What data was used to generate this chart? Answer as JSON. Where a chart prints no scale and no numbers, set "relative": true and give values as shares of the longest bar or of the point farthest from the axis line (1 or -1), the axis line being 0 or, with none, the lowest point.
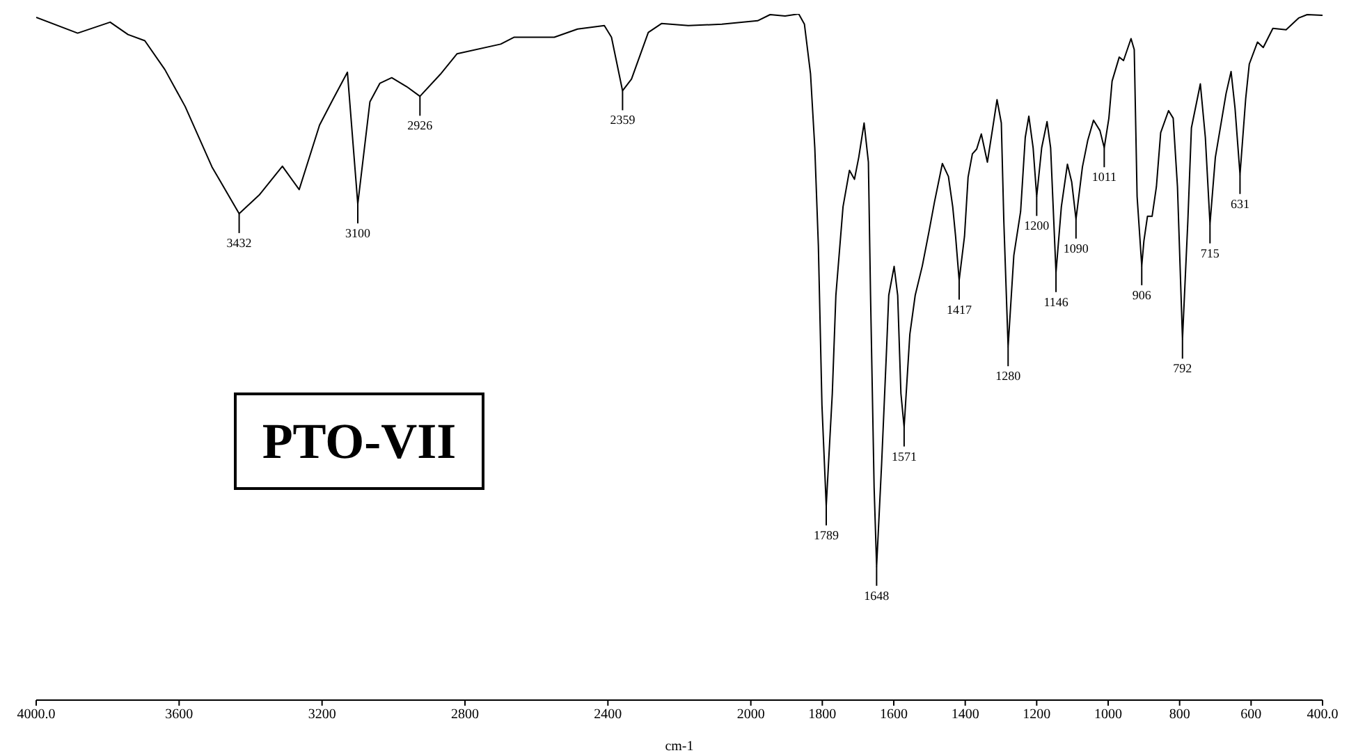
{
  "chart_data": {
    "type": "line",
    "relative": true,
    "xlabel": "cm-1",
    "xlim": [
      4000,
      400
    ],
    "xticks": [
      {
        "value": 4000,
        "label": "4000.0"
      },
      3600,
      3200,
      2800,
      2400,
      2000,
      1800,
      1600,
      1400,
      1200,
      1000,
      800,
      600,
      {
        "value": 400,
        "label": "400.0"
      }
    ],
    "x": [
      4000,
      3884,
      3793,
      3743,
      3696,
      3640,
      3583,
      3508,
      3432,
      3376,
      3311,
      3264,
      3207,
      3170,
      3129,
      3100,
      3066,
      3038,
      3005,
      2963,
      2926,
      2869,
      2822,
      2700,
      2663,
      2550,
      2485,
      2410,
      2390,
      2359,
      2334,
      2287,
      2250,
      2175,
      2081,
      1981,
      1946,
      1904,
      1866,
      1850,
      1833,
      1821,
      1811,
      1801,
      1789,
      1772,
      1762,
      1742,
      1724,
      1710,
      1698,
      1683,
      1671,
      1665,
      1655,
      1648,
      1634,
      1620,
      1614,
      1599,
      1589,
      1580,
      1571,
      1555,
      1540,
      1520,
      1501,
      1486,
      1464,
      1447,
      1435,
      1427,
      1417,
      1402,
      1392,
      1380,
      1368,
      1355,
      1338,
      1323,
      1311,
      1299,
      1292,
      1280,
      1264,
      1245,
      1232,
      1222,
      1210,
      1200,
      1186,
      1171,
      1161,
      1146,
      1131,
      1114,
      1102,
      1090,
      1072,
      1057,
      1041,
      1023,
      1011,
      998,
      989,
      969,
      957,
      936,
      927,
      919,
      906,
      900,
      890,
      877,
      865,
      853,
      831,
      818,
      806,
      792,
      777,
      767,
      742,
      728,
      715,
      700,
      670,
      656,
      645,
      631,
      615,
      605,
      582,
      566,
      539,
      502,
      467,
      443,
      400
    ],
    "series": [
      {
        "color": "#000000",
        "values": [
          0.995,
          0.972,
          0.988,
          0.97,
          0.961,
          0.919,
          0.865,
          0.777,
          0.709,
          0.736,
          0.778,
          0.744,
          0.838,
          0.875,
          0.915,
          0.723,
          0.872,
          0.899,
          0.907,
          0.894,
          0.88,
          0.912,
          0.942,
          0.956,
          0.966,
          0.966,
          0.978,
          0.983,
          0.966,
          0.888,
          0.905,
          0.973,
          0.986,
          0.983,
          0.985,
          0.99,
          0.999,
          0.997,
          1.0,
          0.985,
          0.913,
          0.805,
          0.662,
          0.43,
          0.283,
          0.447,
          0.59,
          0.719,
          0.772,
          0.759,
          0.791,
          0.841,
          0.784,
          0.59,
          0.31,
          0.195,
          0.344,
          0.513,
          0.59,
          0.632,
          0.59,
          0.447,
          0.398,
          0.533,
          0.59,
          0.633,
          0.684,
          0.726,
          0.782,
          0.763,
          0.719,
          0.676,
          0.612,
          0.676,
          0.762,
          0.796,
          0.803,
          0.825,
          0.784,
          0.834,
          0.875,
          0.841,
          0.698,
          0.515,
          0.648,
          0.712,
          0.82,
          0.851,
          0.805,
          0.734,
          0.805,
          0.843,
          0.805,
          0.623,
          0.719,
          0.781,
          0.755,
          0.701,
          0.777,
          0.816,
          0.845,
          0.83,
          0.805,
          0.848,
          0.902,
          0.937,
          0.932,
          0.964,
          0.948,
          0.734,
          0.633,
          0.669,
          0.705,
          0.705,
          0.748,
          0.827,
          0.859,
          0.848,
          0.748,
          0.526,
          0.698,
          0.834,
          0.898,
          0.82,
          0.694,
          0.791,
          0.884,
          0.916,
          0.863,
          0.766,
          0.877,
          0.927,
          0.959,
          0.951,
          0.979,
          0.977,
          0.994,
          0.999,
          0.998
        ]
      }
    ],
    "annotations": [
      {
        "text": "3432",
        "x": 3432,
        "y": 0.709
      },
      {
        "text": "3100",
        "x": 3100,
        "y": 0.723
      },
      {
        "text": "2926",
        "x": 2926,
        "y": 0.88
      },
      {
        "text": "2359",
        "x": 2359,
        "y": 0.888
      },
      {
        "text": "1789",
        "x": 1789,
        "y": 0.283
      },
      {
        "text": "1648",
        "x": 1648,
        "y": 0.195
      },
      {
        "text": "1571",
        "x": 1571,
        "y": 0.398
      },
      {
        "text": "1417",
        "x": 1417,
        "y": 0.612
      },
      {
        "text": "1280",
        "x": 1280,
        "y": 0.515
      },
      {
        "text": "1200",
        "x": 1200,
        "y": 0.734
      },
      {
        "text": "1146",
        "x": 1146,
        "y": 0.623
      },
      {
        "text": "1090",
        "x": 1090,
        "y": 0.701
      },
      {
        "text": "1011",
        "x": 1011,
        "y": 0.805
      },
      {
        "text": "906",
        "x": 906,
        "y": 0.633
      },
      {
        "text": "792",
        "x": 792,
        "y": 0.526
      },
      {
        "text": "715",
        "x": 715,
        "y": 0.694
      },
      {
        "text": "631",
        "x": 631,
        "y": 0.766
      },
      "PTO-VII"
    ]
  }
}
